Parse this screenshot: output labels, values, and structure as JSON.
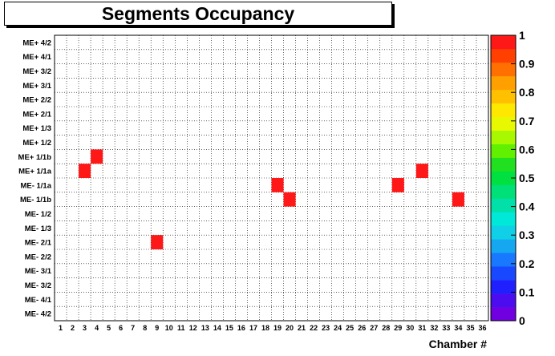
{
  "chart_data": {
    "type": "heatmap",
    "title": "Segments Occupancy",
    "xlabel": "Chamber #",
    "ylabel": "",
    "x_categories": [
      "1",
      "2",
      "3",
      "4",
      "5",
      "6",
      "7",
      "8",
      "9",
      "10",
      "11",
      "12",
      "13",
      "14",
      "15",
      "16",
      "17",
      "18",
      "19",
      "20",
      "21",
      "22",
      "23",
      "24",
      "25",
      "26",
      "27",
      "28",
      "29",
      "30",
      "31",
      "32",
      "33",
      "34",
      "35",
      "36"
    ],
    "y_categories_top_to_bottom": [
      "ME+ 4/2",
      "ME+ 4/1",
      "ME+ 3/2",
      "ME+ 3/1",
      "ME+ 2/2",
      "ME+ 2/1",
      "ME+ 1/3",
      "ME+ 1/2",
      "ME+ 1/1b",
      "ME+ 1/1a",
      "ME- 1/1a",
      "ME- 1/1b",
      "ME- 1/2",
      "ME- 1/3",
      "ME- 2/1",
      "ME- 2/2",
      "ME- 3/1",
      "ME- 3/2",
      "ME- 4/1",
      "ME- 4/2"
    ],
    "cells": [
      {
        "x": "4",
        "y": "ME+ 1/1b",
        "value": 1
      },
      {
        "x": "3",
        "y": "ME+ 1/1a",
        "value": 1
      },
      {
        "x": "31",
        "y": "ME+ 1/1a",
        "value": 1
      },
      {
        "x": "19",
        "y": "ME- 1/1a",
        "value": 1
      },
      {
        "x": "29",
        "y": "ME- 1/1a",
        "value": 1
      },
      {
        "x": "20",
        "y": "ME- 1/1b",
        "value": 1
      },
      {
        "x": "34",
        "y": "ME- 1/1b",
        "value": 1
      },
      {
        "x": "9",
        "y": "ME- 2/1",
        "value": 1
      }
    ],
    "zlim": [
      0,
      1
    ],
    "colorbar_labels": [
      "0",
      "0.1",
      "0.2",
      "0.3",
      "0.4",
      "0.5",
      "0.6",
      "0.7",
      "0.8",
      "0.9",
      "1"
    ],
    "grid": true,
    "colors": [
      "#7000e0",
      "#4b0cf0",
      "#2020ff",
      "#1848ff",
      "#1878ff",
      "#15a8f0",
      "#10d0e8",
      "#00e8d8",
      "#00e0a8",
      "#00e078",
      "#00e040",
      "#20e020",
      "#60f000",
      "#a8f800",
      "#e8f800",
      "#ffe800",
      "#ffc000",
      "#ffa000",
      "#ff7000",
      "#ff4000",
      "#ff1818"
    ]
  }
}
